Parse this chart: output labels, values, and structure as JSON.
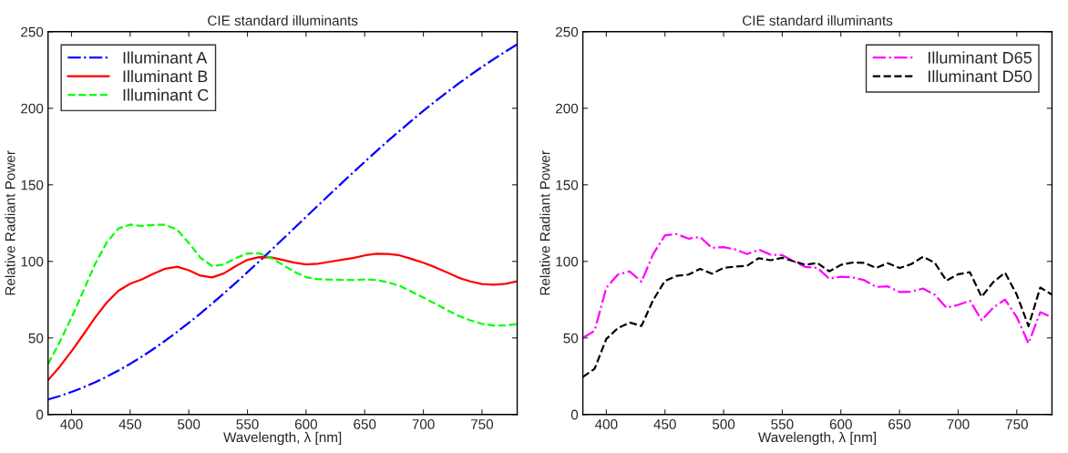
{
  "chart_data": [
    {
      "type": "line",
      "title": "CIE standard illuminants",
      "xlabel": "Wavelength, λ [nm]",
      "ylabel": "Relative Radiant Power",
      "x": [
        380,
        390,
        400,
        410,
        420,
        430,
        440,
        450,
        460,
        470,
        480,
        490,
        500,
        510,
        520,
        530,
        540,
        550,
        560,
        570,
        580,
        590,
        600,
        610,
        620,
        630,
        640,
        650,
        660,
        670,
        680,
        690,
        700,
        710,
        720,
        730,
        740,
        750,
        760,
        770,
        780
      ],
      "xlim": [
        380,
        780
      ],
      "xticks": [
        400,
        450,
        500,
        550,
        600,
        650,
        700,
        750
      ],
      "ylim": [
        0,
        250
      ],
      "yticks": [
        0,
        50,
        100,
        150,
        200,
        250
      ],
      "legend": "top left",
      "series": [
        {
          "name": "Illuminant A",
          "color": "#0000ff",
          "line_style": "dashdot",
          "values": [
            9.8,
            12.09,
            14.71,
            17.68,
            20.99,
            24.67,
            28.7,
            33.09,
            37.81,
            42.87,
            48.24,
            53.91,
            59.86,
            66.06,
            72.5,
            79.13,
            85.95,
            92.91,
            100.0,
            107.18,
            114.44,
            121.73,
            129.04,
            136.35,
            143.62,
            150.84,
            157.98,
            165.03,
            171.96,
            178.77,
            185.43,
            191.93,
            198.26,
            204.41,
            210.36,
            216.12,
            221.67,
            227.0,
            232.12,
            237.01,
            241.68
          ]
        },
        {
          "name": "Illuminant B",
          "color": "#ff0000",
          "line_style": "solid",
          "values": [
            22.4,
            31.3,
            41.3,
            52.1,
            63.2,
            73.1,
            80.8,
            85.4,
            88.3,
            92.0,
            95.2,
            96.5,
            94.2,
            90.7,
            89.5,
            92.2,
            96.9,
            101.0,
            102.8,
            102.6,
            101.0,
            99.2,
            98.0,
            98.5,
            99.7,
            101.0,
            102.2,
            103.9,
            105.0,
            104.9,
            103.9,
            101.6,
            99.1,
            96.2,
            92.9,
            89.4,
            86.9,
            85.2,
            84.7,
            85.4,
            87.0
          ]
        },
        {
          "name": "Illuminant C",
          "color": "#00ff00",
          "line_style": "dashed",
          "values": [
            33.0,
            47.4,
            63.3,
            80.6,
            98.1,
            112.4,
            121.5,
            124.0,
            123.1,
            123.8,
            123.9,
            120.7,
            112.1,
            102.3,
            96.9,
            98.0,
            102.1,
            105.2,
            105.3,
            102.3,
            97.8,
            93.2,
            89.7,
            88.4,
            88.1,
            88.0,
            87.8,
            88.2,
            87.9,
            86.3,
            84.0,
            80.2,
            76.3,
            72.4,
            68.3,
            64.4,
            61.5,
            59.2,
            58.1,
            58.2,
            59.1
          ]
        }
      ]
    },
    {
      "type": "line",
      "title": "CIE standard illuminants",
      "xlabel": "Wavelength, λ [nm]",
      "ylabel": "Relative Radiant Power",
      "x": [
        380,
        390,
        400,
        410,
        420,
        430,
        440,
        450,
        460,
        470,
        480,
        490,
        500,
        510,
        520,
        530,
        540,
        550,
        560,
        570,
        580,
        590,
        600,
        610,
        620,
        630,
        640,
        650,
        660,
        670,
        680,
        690,
        700,
        710,
        720,
        730,
        740,
        750,
        760,
        770,
        780
      ],
      "xlim": [
        380,
        780
      ],
      "xticks": [
        400,
        450,
        500,
        550,
        600,
        650,
        700,
        750
      ],
      "ylim": [
        0,
        250
      ],
      "yticks": [
        0,
        50,
        100,
        150,
        200,
        250
      ],
      "legend": "top right",
      "series": [
        {
          "name": "Illuminant D65",
          "color": "#ff00ff",
          "line_style": "dashdot",
          "values": [
            49.98,
            54.65,
            82.75,
            91.49,
            93.43,
            86.68,
            104.86,
            117.01,
            117.81,
            114.86,
            115.92,
            108.81,
            109.35,
            107.8,
            104.79,
            107.69,
            104.41,
            104.05,
            100.0,
            96.33,
            95.79,
            88.69,
            90.01,
            89.6,
            87.7,
            83.29,
            83.7,
            80.03,
            80.21,
            82.28,
            78.28,
            69.72,
            71.61,
            74.35,
            61.6,
            69.89,
            75.09,
            63.59,
            46.42,
            66.81,
            63.38
          ]
        },
        {
          "name": "Illuminant D50",
          "color": "#000000",
          "line_style": "dashed",
          "values": [
            24.49,
            29.87,
            49.31,
            56.51,
            60.03,
            57.82,
            74.82,
            87.25,
            90.61,
            91.37,
            95.11,
            91.96,
            95.72,
            96.61,
            97.13,
            102.1,
            100.75,
            102.32,
            100.0,
            97.74,
            98.92,
            93.5,
            97.69,
            99.27,
            99.04,
            95.72,
            98.86,
            95.67,
            98.19,
            103.0,
            99.13,
            87.38,
            91.6,
            92.89,
            76.85,
            86.51,
            92.58,
            78.23,
            57.69,
            82.92,
            78.27
          ]
        }
      ]
    }
  ]
}
